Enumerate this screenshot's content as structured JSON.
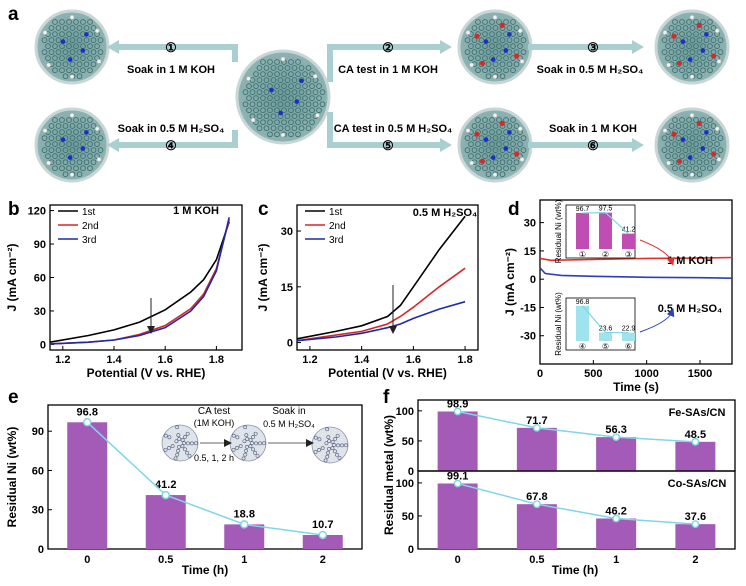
{
  "panel_letters": [
    "a",
    "b",
    "c",
    "d",
    "e",
    "f"
  ],
  "panel_a": {
    "steps": [
      {
        "num": "①",
        "label": "Soak in 1 M KOH"
      },
      {
        "num": "②",
        "label": "CA test in 1 M KOH"
      },
      {
        "num": "③",
        "label": "Soak in 0.5 M H₂SO₄"
      },
      {
        "num": "④",
        "label": "Soak in 0.5 M H₂SO₄"
      },
      {
        "num": "⑤",
        "label": "CA test in 0.5 M H₂SO₄"
      },
      {
        "num": "⑥",
        "label": "Soak in 1 M KOH"
      }
    ]
  },
  "colors": {
    "black": "#000000",
    "red": "#d62728",
    "blue": "#1f2aa5",
    "bar": "#a45bb8",
    "inset_red": "#c04db3",
    "inset_cyan": "#9fe3ee",
    "line": "#7fd6e8"
  },
  "chart_data": [
    {
      "id": "b",
      "type": "line",
      "title": "1 M KOH",
      "xlabel": "Potential (V vs. RHE)",
      "ylabel": "J (mA cm⁻²)",
      "xlim": [
        1.15,
        1.9
      ],
      "ylim": [
        -5,
        125
      ],
      "xticks": [
        "1.2",
        "1.4",
        "1.6",
        "1.8"
      ],
      "yticks": [
        "0",
        "30",
        "60",
        "90",
        "120"
      ],
      "legend": [
        "1st",
        "2nd",
        "3rd"
      ],
      "series": [
        {
          "name": "1st",
          "x": [
            1.15,
            1.3,
            1.4,
            1.5,
            1.6,
            1.7,
            1.75,
            1.8,
            1.85
          ],
          "y": [
            2,
            8,
            13,
            20,
            31,
            47,
            58,
            76,
            110
          ]
        },
        {
          "name": "2nd",
          "x": [
            1.15,
            1.3,
            1.4,
            1.5,
            1.6,
            1.7,
            1.75,
            1.8,
            1.85
          ],
          "y": [
            0.5,
            2,
            4,
            9,
            17,
            32,
            45,
            68,
            112
          ]
        },
        {
          "name": "3rd",
          "x": [
            1.15,
            1.3,
            1.4,
            1.5,
            1.6,
            1.7,
            1.75,
            1.8,
            1.85
          ],
          "y": [
            0.5,
            2,
            4,
            8,
            15,
            30,
            43,
            66,
            114
          ]
        }
      ]
    },
    {
      "id": "c",
      "type": "line",
      "title": "0.5 M H₂SO₄",
      "xlabel": "Potential (V vs. RHE)",
      "ylabel": "J (mA cm⁻²)",
      "xlim": [
        1.15,
        1.85
      ],
      "ylim": [
        -2,
        37
      ],
      "xticks": [
        "1.2",
        "1.4",
        "1.6",
        "1.8"
      ],
      "yticks": [
        "0",
        "15",
        "30"
      ],
      "legend": [
        "1st",
        "2nd",
        "3rd"
      ],
      "series": [
        {
          "name": "1st",
          "x": [
            1.15,
            1.3,
            1.4,
            1.5,
            1.55,
            1.6,
            1.7,
            1.8
          ],
          "y": [
            1,
            3,
            4.5,
            7,
            10,
            15,
            25,
            34
          ]
        },
        {
          "name": "2nd",
          "x": [
            1.15,
            1.3,
            1.4,
            1.5,
            1.55,
            1.6,
            1.7,
            1.8
          ],
          "y": [
            0.5,
            2,
            3,
            5,
            7,
            9.5,
            15,
            20
          ]
        },
        {
          "name": "3rd",
          "x": [
            1.15,
            1.3,
            1.4,
            1.5,
            1.55,
            1.6,
            1.7,
            1.8
          ],
          "y": [
            0.5,
            1.5,
            2.5,
            4,
            5,
            6.5,
            9,
            11
          ]
        }
      ]
    },
    {
      "id": "d",
      "type": "line",
      "xlabel": "Time (s)",
      "ylabel": "J (mA cm⁻²)",
      "xlim": [
        0,
        1800
      ],
      "ylim": [
        -45,
        42
      ],
      "xticks": [
        "0",
        "500",
        "1000",
        "1500"
      ],
      "yticks": [
        "-30",
        "-15",
        "0",
        "15",
        "30"
      ],
      "series": [
        {
          "name": "1 M KOH",
          "x": [
            0,
            100,
            500,
            1000,
            1500,
            1800
          ],
          "y": [
            11,
            10,
            10.5,
            11,
            11.2,
            11.5
          ]
        },
        {
          "name": "0.5 M H₂SO₄",
          "x": [
            0,
            50,
            200,
            500,
            1000,
            1500,
            1800
          ],
          "y": [
            6,
            3,
            2,
            1.5,
            1,
            0.8,
            0.5
          ]
        }
      ],
      "labels": [
        "1 M KOH",
        "0.5 M H₂SO₄"
      ],
      "insets": [
        {
          "ylabel": "Residual Ni (wt%)",
          "values": [
            96.7,
            97.5,
            41.2
          ],
          "value_labels": [
            "96.7",
            "97.5",
            "41.2"
          ],
          "steps": [
            "①",
            "②",
            "③"
          ]
        },
        {
          "ylabel": "Residual Ni (wt%)",
          "values": [
            96.8,
            23.6,
            22.9
          ],
          "value_labels": [
            "96.8",
            "23.6",
            "22.9"
          ],
          "steps": [
            "④",
            "⑤",
            "⑥"
          ]
        }
      ]
    },
    {
      "id": "e",
      "type": "bar",
      "xlabel": "Time (h)",
      "ylabel": "Residual Ni (wt%)",
      "categories": [
        "0",
        "0.5",
        "1",
        "2"
      ],
      "values": [
        96.8,
        41.2,
        18.8,
        10.7
      ],
      "value_labels": [
        "96.8",
        "41.2",
        "18.8",
        "10.7"
      ],
      "ylim": [
        0,
        110
      ],
      "yticks": [
        "0",
        "30",
        "60",
        "90"
      ],
      "scheme": {
        "step1": "CA test",
        "step1b": "(1M KOH)",
        "step1c": "0.5, 1, 2 h",
        "step2": "Soak in",
        "step2b": "0.5 M H₂SO₄"
      }
    },
    {
      "id": "f",
      "type": "bar",
      "xlabel": "Time (h)",
      "ylabel": "Residual metal (wt%)",
      "categories": [
        "0",
        "0.5",
        "1",
        "2"
      ],
      "yticks": [
        "0",
        "50",
        "100"
      ],
      "series": [
        {
          "name": "Fe-SAs/CN",
          "values": [
            98.9,
            71.7,
            56.3,
            48.5
          ],
          "value_labels": [
            "98.9",
            "71.7",
            "56.3",
            "48.5"
          ]
        },
        {
          "name": "Co-SAs/CN",
          "values": [
            99.1,
            67.8,
            46.2,
            37.6
          ],
          "value_labels": [
            "99.1",
            "67.8",
            "46.2",
            "37.6"
          ]
        }
      ]
    }
  ]
}
